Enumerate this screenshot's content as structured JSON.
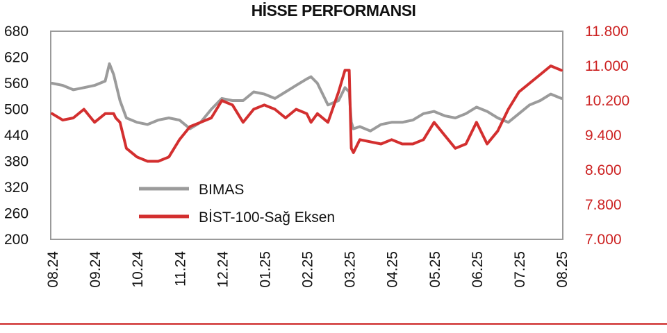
{
  "chart_data": {
    "type": "line",
    "title": "HİSSE PERFORMANSI",
    "x_ticks": [
      "08.24",
      "09.24",
      "10.24",
      "11.24",
      "12.24",
      "01.25",
      "02.25",
      "03.25",
      "04.25",
      "05.25",
      "06.25",
      "07.25",
      "08.25"
    ],
    "y_left": {
      "ticks": [
        "680",
        "620",
        "560",
        "500",
        "440",
        "380",
        "320",
        "260",
        "200"
      ],
      "ylim": [
        200,
        680
      ]
    },
    "y_right": {
      "ticks": [
        "11.800",
        "11.000",
        "10.200",
        "9.400",
        "8.600",
        "7.800",
        "7.000"
      ],
      "ylim": [
        7000,
        11800
      ]
    },
    "grid": false,
    "legend_position": "bottom-left inside plot",
    "series": [
      {
        "name": "BIMAS",
        "axis": "left",
        "color": "#9b9b9b",
        "x": [
          0,
          0.25,
          0.5,
          0.75,
          1.0,
          1.25,
          1.35,
          1.45,
          1.5,
          1.6,
          1.75,
          2.0,
          2.25,
          2.5,
          2.75,
          3.0,
          3.25,
          3.5,
          3.75,
          4.0,
          4.25,
          4.5,
          4.75,
          5.0,
          5.25,
          5.5,
          5.75,
          6.0,
          6.1,
          6.25,
          6.5,
          6.75,
          6.9,
          7.0,
          7.05,
          7.1,
          7.25,
          7.5,
          7.75,
          8.0,
          8.25,
          8.5,
          8.75,
          9.0,
          9.25,
          9.5,
          9.75,
          10.0,
          10.25,
          10.5,
          10.75,
          11.0,
          11.25,
          11.5,
          11.75,
          12.0
        ],
        "values": [
          560,
          555,
          545,
          550,
          555,
          565,
          605,
          580,
          560,
          520,
          480,
          470,
          465,
          475,
          480,
          475,
          455,
          470,
          500,
          525,
          520,
          520,
          540,
          535,
          525,
          540,
          555,
          570,
          575,
          560,
          510,
          520,
          550,
          540,
          470,
          455,
          460,
          450,
          465,
          470,
          470,
          475,
          490,
          495,
          485,
          480,
          490,
          505,
          495,
          480,
          470,
          490,
          510,
          520,
          535,
          525
        ]
      },
      {
        "name": "BİST-100-Sağ Eksen",
        "axis": "right",
        "color": "#d32f2f",
        "x": [
          0,
          0.25,
          0.5,
          0.75,
          1.0,
          1.25,
          1.35,
          1.45,
          1.5,
          1.6,
          1.75,
          2.0,
          2.25,
          2.5,
          2.75,
          3.0,
          3.25,
          3.5,
          3.75,
          4.0,
          4.25,
          4.5,
          4.75,
          5.0,
          5.25,
          5.5,
          5.75,
          6.0,
          6.1,
          6.25,
          6.5,
          6.75,
          6.9,
          7.0,
          7.05,
          7.1,
          7.25,
          7.5,
          7.75,
          8.0,
          8.25,
          8.5,
          8.75,
          9.0,
          9.25,
          9.5,
          9.75,
          10.0,
          10.25,
          10.5,
          10.75,
          11.0,
          11.25,
          11.5,
          11.75,
          12.0
        ],
        "values": [
          9900,
          9750,
          9800,
          10000,
          9700,
          9900,
          9900,
          9900,
          9800,
          9700,
          9100,
          8900,
          8800,
          8800,
          8900,
          9300,
          9600,
          9700,
          9800,
          10200,
          10100,
          9700,
          10000,
          10100,
          10000,
          9800,
          10000,
          9900,
          9700,
          9900,
          9700,
          10400,
          10900,
          10900,
          9100,
          9000,
          9300,
          9250,
          9200,
          9300,
          9200,
          9200,
          9300,
          9700,
          9400,
          9100,
          9200,
          9700,
          9200,
          9500,
          10000,
          10400,
          10600,
          10800,
          11000,
          10900
        ]
      }
    ],
    "legend": [
      "BIMAS",
      "BİST-100-Sağ Eksen"
    ]
  }
}
